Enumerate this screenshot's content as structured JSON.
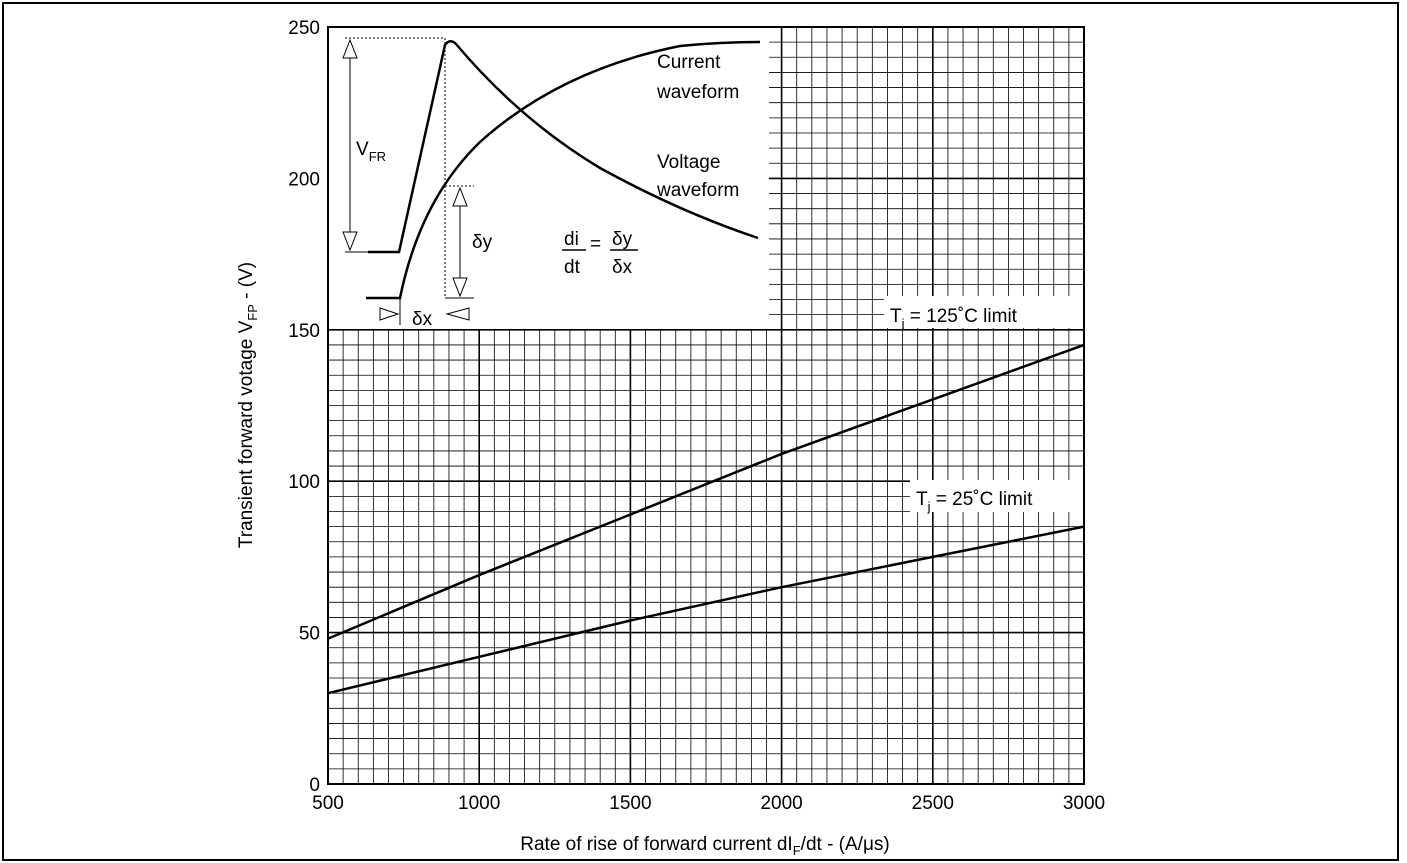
{
  "chart_data": {
    "type": "line",
    "xlabel": "Rate of rise of forward current dI",
    "xlabel_sub": "F",
    "xlabel_tail": "/dt - (A/μs)",
    "ylabel": "Transient forward votage V",
    "ylabel_sub": "FP",
    "ylabel_tail": " - (V)",
    "xlim": [
      500,
      3000
    ],
    "ylim": [
      0,
      250
    ],
    "x_ticks": [
      "500",
      "1000",
      "1500",
      "2000",
      "2500",
      "3000"
    ],
    "y_ticks": [
      "0",
      "50",
      "100",
      "150",
      "200",
      "250"
    ],
    "grid": true,
    "series": [
      {
        "name": "Tj = 125˚C limit",
        "label_main": "T",
        "label_sub": "j",
        "label_tail": " = 125˚C limit",
        "x": [
          500,
          1000,
          1500,
          2000,
          2500,
          3000
        ],
        "y": [
          48,
          69,
          89,
          109,
          127,
          145
        ]
      },
      {
        "name": "Tj = 25˚C limit",
        "label_main": "T",
        "label_sub": "j",
        "label_tail": " = 25˚C limit",
        "x": [
          500,
          1000,
          1500,
          2000,
          2500,
          3000
        ],
        "y": [
          30,
          42,
          54,
          65,
          75,
          85
        ]
      }
    ],
    "inset": {
      "current_label": [
        "Current",
        "waveform"
      ],
      "voltage_label": [
        "Voltage",
        "waveform"
      ],
      "vfr_main": "V",
      "vfr_sub": "FR",
      "dy": "δy",
      "dx": "δx",
      "formula_num_left": "di",
      "formula_den_left": "dt",
      "formula_eq": "=",
      "formula_num_right": "δy",
      "formula_den_right": "δx"
    }
  }
}
